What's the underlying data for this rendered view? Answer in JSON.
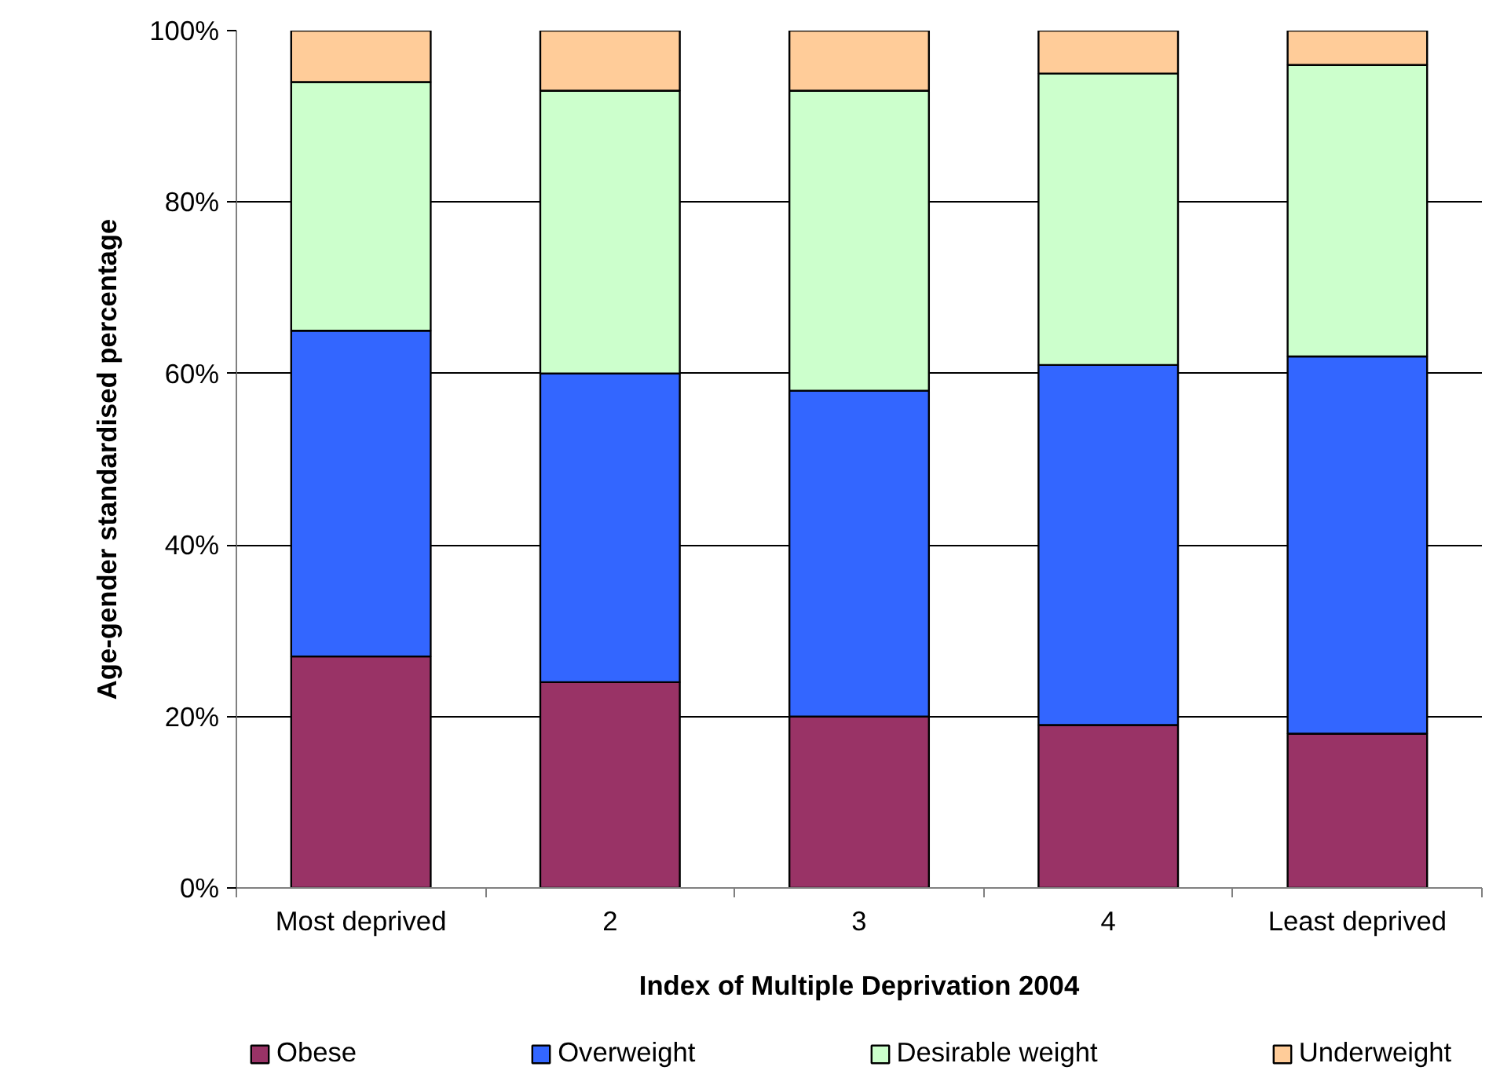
{
  "chart_data": {
    "type": "bar",
    "stacked": true,
    "xlabel": "Index of Multiple Deprivation 2004",
    "ylabel": "Age-gender standardised percentage",
    "categories": [
      "Most deprived",
      "2",
      "3",
      "4",
      "Least deprived"
    ],
    "series": [
      {
        "name": "Obese",
        "color": "#993366",
        "values": [
          27,
          24,
          20,
          19,
          18
        ]
      },
      {
        "name": "Overweight",
        "color": "#3366ff",
        "values": [
          38,
          36,
          38,
          42,
          44
        ]
      },
      {
        "name": "Desirable weight",
        "color": "#ccffcc",
        "values": [
          29,
          33,
          35,
          34,
          34
        ]
      },
      {
        "name": "Underweight",
        "color": "#ffcc99",
        "values": [
          6,
          7,
          7,
          5,
          4
        ]
      }
    ],
    "ylim": [
      0,
      100
    ],
    "yticks": [
      {
        "value": 0,
        "label": "0%"
      },
      {
        "value": 20,
        "label": "20%"
      },
      {
        "value": 40,
        "label": "40%"
      },
      {
        "value": 60,
        "label": "60%"
      },
      {
        "value": 80,
        "label": "80%"
      },
      {
        "value": 100,
        "label": "100%"
      }
    ],
    "grid": "y",
    "legend": "bottom"
  }
}
